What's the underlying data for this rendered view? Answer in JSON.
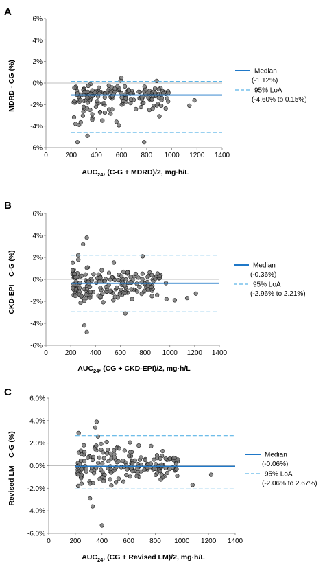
{
  "colors": {
    "median": "#1f78c8",
    "loa": "#5ab4e6",
    "point_fill": "#7a7a7a",
    "point_stroke": "#1a1a1a"
  },
  "chart_data": [
    {
      "panel": "A",
      "type": "scatter",
      "ylabel": "MDRD - CG (%)",
      "xlabel_main": "AUC",
      "xlabel_sub": "24",
      "xlabel_rest": ", (C-G + MDRD)/2, mg·h/L",
      "xlim": [
        0,
        1400
      ],
      "ylim": [
        -6,
        6
      ],
      "x_ticks": [
        0,
        200,
        400,
        600,
        800,
        1000,
        1200,
        1400
      ],
      "x_tick_labels": [
        "0",
        "200",
        "400",
        "600",
        "800",
        "1000",
        "1200",
        "1400"
      ],
      "y_ticks": [
        -6,
        -4,
        -2,
        0,
        2,
        4,
        6
      ],
      "y_tick_labels": [
        "-6%",
        "-4%",
        "-2%",
        "0%",
        "2%",
        "4%",
        "6%"
      ],
      "median": -1.12,
      "loa": [
        -4.6,
        0.15
      ],
      "legend": {
        "median_label": "Median",
        "median_value": "(-1.12%)",
        "loa_label": "95% LoA",
        "loa_value": "(-4.60% to 0.15%)"
      },
      "seed": 11,
      "spread": {
        "center": -1.1,
        "sd_low": 1.25,
        "sd_high": 0.45,
        "cap_high": 0.5,
        "cap_low": -4.6
      },
      "n_points": 190,
      "outliers": [
        [
          250,
          -5.5
        ],
        [
          330,
          -4.9
        ],
        [
          780,
          -5.5
        ],
        [
          560,
          -3.6
        ],
        [
          600,
          0.5
        ],
        [
          880,
          0.2
        ],
        [
          1180,
          -1.6
        ],
        [
          1140,
          -2.1
        ],
        [
          920,
          -1.4
        ]
      ]
    },
    {
      "panel": "B",
      "type": "scatter",
      "ylabel": "CKD-EPI – C-G (%)",
      "xlabel_main": "AUC",
      "xlabel_sub": "24",
      "xlabel_rest": ", (CG + CKD-EPI)/2, mg·h/L",
      "xlim": [
        0,
        1400
      ],
      "ylim": [
        -6,
        6
      ],
      "x_ticks": [
        0,
        200,
        400,
        600,
        800,
        1000,
        1200,
        1400
      ],
      "x_tick_labels": [
        "0",
        "200",
        "400",
        "600",
        "800",
        "1000",
        "1200",
        "1400"
      ],
      "y_ticks": [
        -6,
        -4,
        -2,
        0,
        2,
        4,
        6
      ],
      "y_tick_labels": [
        "-6%",
        "-4%",
        "-2%",
        "0%",
        "2%",
        "4%",
        "6%"
      ],
      "median": -0.36,
      "loa": [
        -2.96,
        2.21
      ],
      "legend": {
        "median_label": "Median",
        "median_value": "(-0.36%)",
        "loa_label": "95% LoA",
        "loa_value": "(-2.96% to 2.21%)"
      },
      "seed": 23,
      "spread": {
        "center": -0.4,
        "sd_low": 0.95,
        "sd_high": 0.8,
        "cap_high": 2.2,
        "cap_low": -3.0
      },
      "n_points": 190,
      "outliers": [
        [
          330,
          3.8
        ],
        [
          300,
          3.2
        ],
        [
          310,
          -4.2
        ],
        [
          330,
          -4.8
        ],
        [
          260,
          2.2
        ],
        [
          780,
          2.1
        ],
        [
          640,
          -3.1
        ],
        [
          1040,
          -1.9
        ],
        [
          1210,
          -1.3
        ],
        [
          1140,
          -1.7
        ]
      ]
    },
    {
      "panel": "C",
      "type": "scatter",
      "ylabel": "Revised LM – C-G (%)",
      "xlabel_main": "AUC",
      "xlabel_sub": "24",
      "xlabel_rest": ", (CG + Revised LM)/2, mg·h/L",
      "xlim": [
        0,
        1400
      ],
      "ylim": [
        -6,
        6
      ],
      "x_ticks": [
        0,
        200,
        400,
        600,
        800,
        1000,
        1200,
        1400
      ],
      "x_tick_labels": [
        "0",
        "200",
        "400",
        "600",
        "800",
        "1000",
        "1200",
        "1400"
      ],
      "y_ticks": [
        -6,
        -4,
        -2,
        0,
        2,
        4,
        6
      ],
      "y_tick_labels": [
        "-6.0%",
        "-4.0%",
        "-2.0%",
        "0.0%",
        "2.0%",
        "4.0%",
        "6.0%"
      ],
      "median": -0.06,
      "loa": [
        -2.06,
        2.67
      ],
      "legend": {
        "median_label": "Median",
        "median_value": "(-0.06%)",
        "loa_label": "95% LoA",
        "loa_value": "(-2.06% to 2.67%)"
      },
      "seed": 37,
      "spread": {
        "center": 0.0,
        "sd_low": 0.8,
        "sd_high": 0.95,
        "cap_high": 2.6,
        "cap_low": -2.1
      },
      "n_points": 190,
      "outliers": [
        [
          360,
          3.9
        ],
        [
          350,
          3.4
        ],
        [
          225,
          2.9
        ],
        [
          370,
          2.6
        ],
        [
          310,
          -2.9
        ],
        [
          330,
          -3.6
        ],
        [
          400,
          -5.3
        ],
        [
          940,
          0.7
        ],
        [
          1080,
          -1.7
        ],
        [
          1220,
          -0.8
        ]
      ]
    }
  ]
}
